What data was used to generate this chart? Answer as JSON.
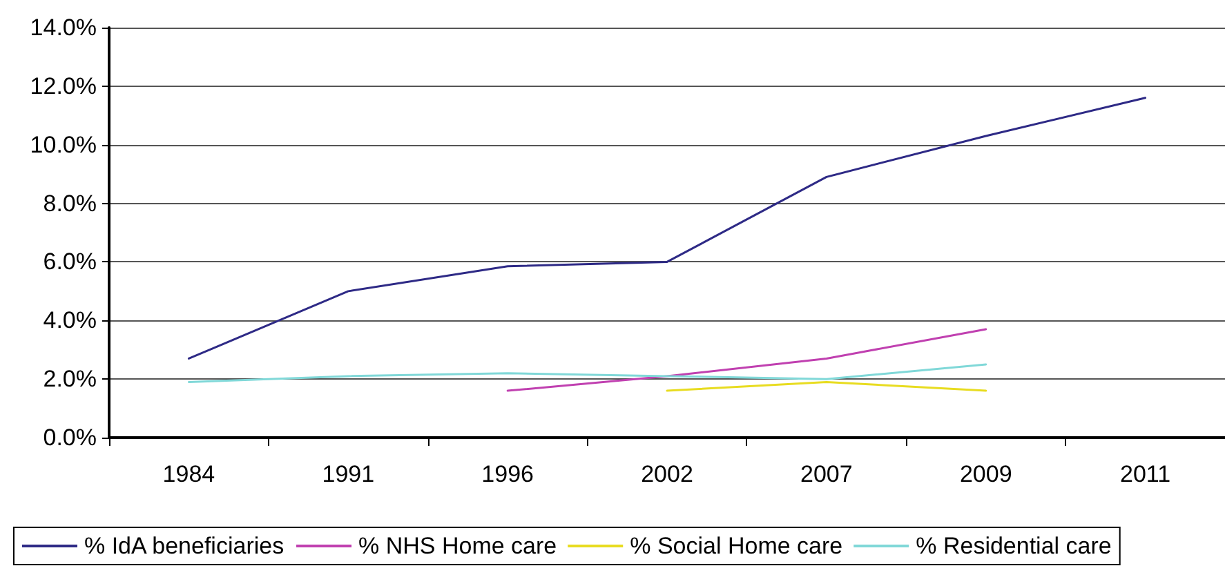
{
  "chart_data": {
    "type": "line",
    "categories": [
      "1984",
      "1991",
      "1996",
      "2002",
      "2007",
      "2009",
      "2011"
    ],
    "series": [
      {
        "name": "% IdA beneficiaries",
        "color": "#2e2a86",
        "values": [
          2.7,
          5.0,
          5.85,
          6.0,
          8.9,
          10.3,
          11.6
        ]
      },
      {
        "name": "% NHS Home care",
        "color": "#c040b0",
        "values": [
          null,
          null,
          1.6,
          2.1,
          2.7,
          3.7,
          null
        ]
      },
      {
        "name": "% Social Home care",
        "color": "#e8dc20",
        "values": [
          null,
          null,
          null,
          1.6,
          1.9,
          1.6,
          null
        ]
      },
      {
        "name": "% Residential care",
        "color": "#80d8d8",
        "values": [
          1.9,
          2.1,
          2.2,
          2.1,
          2.0,
          2.5,
          null
        ]
      }
    ],
    "ylim": [
      0,
      14
    ],
    "yticks": [
      {
        "value": 0,
        "label": "0.0%"
      },
      {
        "value": 2,
        "label": "2.0%"
      },
      {
        "value": 4,
        "label": "4.0%"
      },
      {
        "value": 6,
        "label": "6.0%"
      },
      {
        "value": 8,
        "label": "8.0%"
      },
      {
        "value": 10,
        "label": "10.0%"
      },
      {
        "value": 12,
        "label": "12.0%"
      },
      {
        "value": 14,
        "label": "14.0%"
      }
    ],
    "grid": "y",
    "legend": "bottom",
    "marker": "none",
    "line_style": "solid"
  }
}
